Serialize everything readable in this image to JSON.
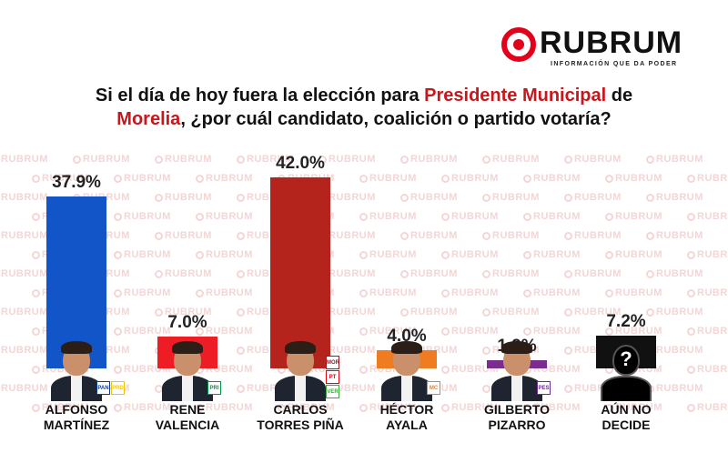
{
  "brand": {
    "name": "RUBRUM",
    "tagline": "INFORMACIÓN QUE DA PODER",
    "watermark": "RUBRUM",
    "accent": "#e3001b"
  },
  "question": {
    "part1": "Si el día de hoy fuera la elección para ",
    "highlight1": "Presidente Municipal",
    "part2": " de",
    "highlight2": "Morelia",
    "part3": ", ¿por cuál candidato, coalición o partido votaría?"
  },
  "chart_data": {
    "type": "bar",
    "categories": [
      "ALFONSO MARTÍNEZ",
      "RENE VALENCIA",
      "CARLOS TORRES PIÑA",
      "HÉCTOR AYALA",
      "GILBERTO PIZARRO",
      "AÚN NO DECIDE"
    ],
    "values": [
      37.9,
      7.0,
      42.0,
      4.0,
      1.9,
      7.2
    ],
    "value_labels": [
      "37.9%",
      "7.0%",
      "42.0%",
      "4.0%",
      "1.9%",
      "7.2%"
    ],
    "name_lines": [
      [
        "ALFONSO",
        "MARTÍNEZ"
      ],
      [
        "RENE",
        "VALENCIA"
      ],
      [
        "CARLOS",
        "TORRES PIÑA"
      ],
      [
        "HÉCTOR",
        "AYALA"
      ],
      [
        "GILBERTO",
        "PIZARRO"
      ],
      [
        "AÚN NO",
        "DECIDE"
      ]
    ],
    "colors": [
      "#1155c8",
      "#ee1c25",
      "#b5231d",
      "#f07c22",
      "#7a2d8e",
      "#111111"
    ],
    "party_logos": [
      [
        "PAN",
        "PRD"
      ],
      [
        "PRI"
      ],
      [
        "MORENA",
        "PT",
        "VERDE"
      ],
      [
        "MC"
      ],
      [
        "PES"
      ],
      []
    ],
    "party_colors": [
      [
        "#0b3e91",
        "#f2c500"
      ],
      [
        "#009846"
      ],
      [
        "#a01b23",
        "#e30613",
        "#3aaa35"
      ],
      [
        "#f07c22"
      ],
      [
        "#6b2c8e"
      ],
      []
    ],
    "ylim": [
      0,
      42
    ]
  }
}
